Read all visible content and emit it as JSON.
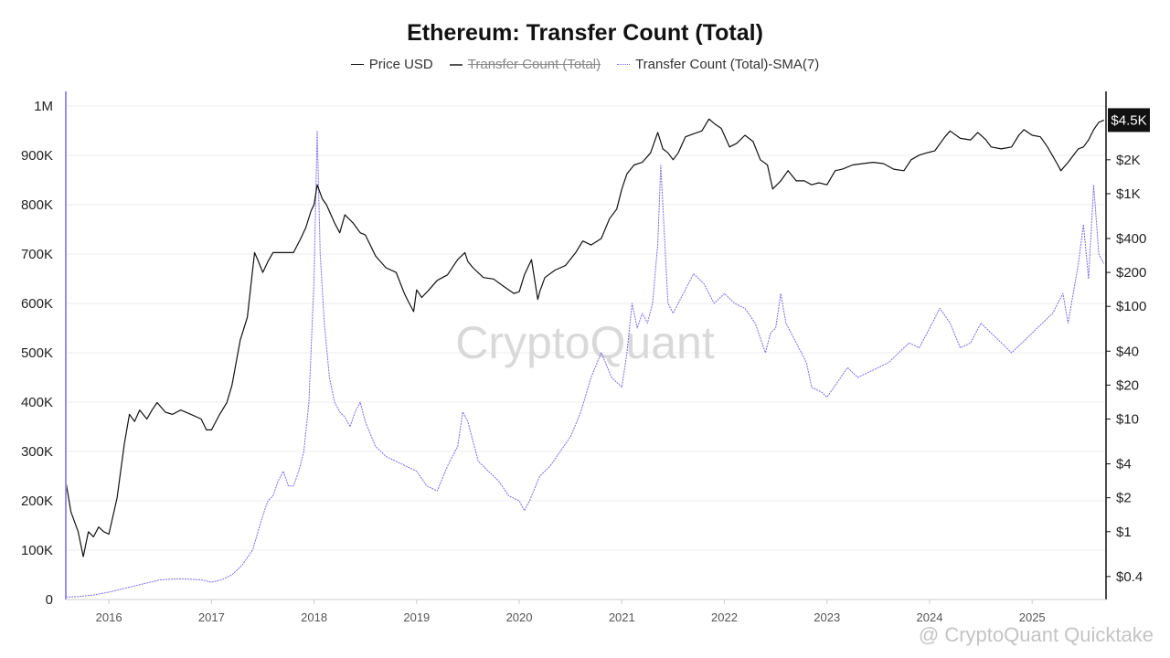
{
  "colors": {
    "price": "#111111",
    "transfer_count": "#555555",
    "sma": "#7b6ce8",
    "left_axis": "#9a8cf0",
    "grid": "#eeeeee",
    "price_badge": "#111111"
  },
  "watermark": {
    "center_text": "CryptoQuant",
    "corner_text": "@ CryptoQuant Quicktake"
  },
  "chart_data": {
    "type": "line",
    "title": "Ethereum: Transfer Count (Total)",
    "legend": [
      {
        "name": "Price USD",
        "style": "solid",
        "hidden": false
      },
      {
        "name": "Transfer Count (Total)",
        "style": "solid",
        "hidden": true
      },
      {
        "name": "Transfer Count (Total)-SMA(7)",
        "style": "dotted",
        "hidden": false
      }
    ],
    "x_ticks": [
      "2016",
      "2017",
      "2018",
      "2019",
      "2020",
      "2021",
      "2022",
      "2023",
      "2024",
      "2025"
    ],
    "xlim": [
      2015.58,
      2025.72
    ],
    "y_left": {
      "ticks": [
        0,
        100000,
        200000,
        300000,
        400000,
        500000,
        600000,
        700000,
        800000,
        900000,
        1000000
      ],
      "tick_labels": [
        "0",
        "100K",
        "200K",
        "300K",
        "400K",
        "500K",
        "600K",
        "700K",
        "800K",
        "900K",
        "1M"
      ],
      "ylim": [
        0,
        1000000
      ]
    },
    "y_right": {
      "scale": "log",
      "ticks": [
        0.4,
        1,
        2,
        4,
        10,
        20,
        40,
        100,
        200,
        400,
        1000,
        2000
      ],
      "tick_labels": [
        "$0.4",
        "$1",
        "$2",
        "$4",
        "$10",
        "$20",
        "$40",
        "$100",
        "$200",
        "$400",
        "$1K",
        "$2K"
      ],
      "current_label": "$4.5K",
      "current_value": 4500
    },
    "series": [
      {
        "name": "Price USD",
        "axis": "right",
        "x": [
          2015.58,
          2015.63,
          2015.7,
          2015.75,
          2015.8,
          2015.85,
          2015.9,
          2015.95,
          2016.0,
          2016.08,
          2016.15,
          2016.2,
          2016.25,
          2016.3,
          2016.37,
          2016.42,
          2016.47,
          2016.55,
          2016.62,
          2016.7,
          2016.8,
          2016.9,
          2016.95,
          2017.0,
          2017.08,
          2017.15,
          2017.2,
          2017.28,
          2017.35,
          2017.42,
          2017.45,
          2017.5,
          2017.55,
          2017.6,
          2017.7,
          2017.8,
          2017.87,
          2017.92,
          2017.97,
          2018.0,
          2018.03,
          2018.08,
          2018.12,
          2018.2,
          2018.25,
          2018.3,
          2018.38,
          2018.45,
          2018.5,
          2018.6,
          2018.7,
          2018.8,
          2018.88,
          2018.92,
          2018.97,
          2019.0,
          2019.05,
          2019.12,
          2019.2,
          2019.3,
          2019.4,
          2019.47,
          2019.5,
          2019.55,
          2019.65,
          2019.75,
          2019.85,
          2019.95,
          2020.0,
          2020.05,
          2020.12,
          2020.18,
          2020.2,
          2020.25,
          2020.35,
          2020.45,
          2020.55,
          2020.62,
          2020.7,
          2020.8,
          2020.88,
          2020.95,
          2021.0,
          2021.05,
          2021.12,
          2021.2,
          2021.28,
          2021.35,
          2021.4,
          2021.45,
          2021.5,
          2021.55,
          2021.62,
          2021.7,
          2021.78,
          2021.85,
          2021.9,
          2021.97,
          2022.05,
          2022.12,
          2022.2,
          2022.28,
          2022.35,
          2022.42,
          2022.47,
          2022.55,
          2022.62,
          2022.7,
          2022.78,
          2022.85,
          2022.92,
          2023.0,
          2023.08,
          2023.15,
          2023.25,
          2023.35,
          2023.45,
          2023.55,
          2023.65,
          2023.75,
          2023.82,
          2023.9,
          2023.97,
          2024.05,
          2024.15,
          2024.2,
          2024.3,
          2024.4,
          2024.47,
          2024.55,
          2024.6,
          2024.7,
          2024.8,
          2024.87,
          2024.92,
          2025.0,
          2025.08,
          2025.15,
          2025.25,
          2025.28,
          2025.35,
          2025.45,
          2025.5,
          2025.55,
          2025.6,
          2025.65,
          2025.7
        ],
        "values": [
          2.8,
          1.5,
          1.0,
          0.6,
          1.0,
          0.9,
          1.1,
          1.0,
          0.95,
          2.0,
          6.0,
          11.0,
          9.5,
          12.0,
          10.0,
          12.0,
          14.0,
          11.5,
          11.0,
          12.0,
          11.0,
          10.0,
          8.0,
          8.0,
          11.0,
          14.0,
          20.0,
          50.0,
          80.0,
          300.0,
          260.0,
          200.0,
          250.0,
          300.0,
          300.0,
          300.0,
          400.0,
          500.0,
          700.0,
          800.0,
          1200.0,
          900.0,
          800.0,
          550.0,
          450.0,
          650.0,
          550.0,
          450.0,
          430.0,
          280.0,
          220.0,
          200.0,
          130.0,
          110.0,
          90.0,
          140.0,
          120.0,
          140.0,
          170.0,
          190.0,
          260.0,
          300.0,
          250.0,
          220.0,
          180.0,
          175.0,
          150.0,
          130.0,
          135.0,
          190.0,
          260.0,
          115.0,
          135.0,
          180.0,
          210.0,
          230.0,
          300.0,
          380.0,
          350.0,
          400.0,
          600.0,
          730.0,
          1100.0,
          1500.0,
          1800.0,
          1900.0,
          2300.0,
          3500.0,
          2500.0,
          2300.0,
          2000.0,
          2300.0,
          3200.0,
          3400.0,
          3600.0,
          4600.0,
          4200.0,
          3800.0,
          2600.0,
          2800.0,
          3300.0,
          2900.0,
          2000.0,
          1800.0,
          1100.0,
          1300.0,
          1600.0,
          1300.0,
          1300.0,
          1200.0,
          1250.0,
          1200.0,
          1600.0,
          1650.0,
          1800.0,
          1850.0,
          1900.0,
          1850.0,
          1650.0,
          1600.0,
          2000.0,
          2200.0,
          2300.0,
          2400.0,
          3200.0,
          3600.0,
          3100.0,
          3000.0,
          3500.0,
          3000.0,
          2600.0,
          2500.0,
          2600.0,
          3300.0,
          3700.0,
          3300.0,
          3200.0,
          2600.0,
          1800.0,
          1600.0,
          1900.0,
          2500.0,
          2600.0,
          3000.0,
          3700.0,
          4300.0,
          4500.0
        ]
      },
      {
        "name": "Transfer Count (Total)-SMA(7)",
        "axis": "left",
        "x": [
          2015.58,
          2015.7,
          2015.85,
          2016.0,
          2016.2,
          2016.4,
          2016.5,
          2016.7,
          2016.9,
          2017.0,
          2017.1,
          2017.2,
          2017.3,
          2017.4,
          2017.5,
          2017.55,
          2017.6,
          2017.65,
          2017.7,
          2017.75,
          2017.8,
          2017.85,
          2017.9,
          2017.95,
          2018.0,
          2018.03,
          2018.06,
          2018.1,
          2018.15,
          2018.2,
          2018.25,
          2018.3,
          2018.35,
          2018.4,
          2018.45,
          2018.5,
          2018.6,
          2018.7,
          2018.8,
          2018.9,
          2019.0,
          2019.1,
          2019.2,
          2019.3,
          2019.4,
          2019.45,
          2019.5,
          2019.6,
          2019.7,
          2019.8,
          2019.9,
          2020.0,
          2020.05,
          2020.1,
          2020.2,
          2020.3,
          2020.4,
          2020.5,
          2020.6,
          2020.7,
          2020.8,
          2020.9,
          2021.0,
          2021.05,
          2021.1,
          2021.15,
          2021.2,
          2021.25,
          2021.3,
          2021.35,
          2021.38,
          2021.45,
          2021.5,
          2021.6,
          2021.7,
          2021.8,
          2021.9,
          2022.0,
          2022.1,
          2022.2,
          2022.3,
          2022.4,
          2022.45,
          2022.5,
          2022.55,
          2022.6,
          2022.7,
          2022.8,
          2022.85,
          2022.95,
          2023.0,
          2023.1,
          2023.2,
          2023.3,
          2023.4,
          2023.5,
          2023.6,
          2023.7,
          2023.8,
          2023.9,
          2024.0,
          2024.1,
          2024.2,
          2024.3,
          2024.4,
          2024.5,
          2024.6,
          2024.7,
          2024.8,
          2024.9,
          2025.0,
          2025.1,
          2025.2,
          2025.3,
          2025.35,
          2025.4,
          2025.45,
          2025.5,
          2025.55,
          2025.6,
          2025.65,
          2025.7
        ],
        "values": [
          5000,
          6000,
          9000,
          15000,
          25000,
          35000,
          40000,
          42000,
          40000,
          35000,
          40000,
          50000,
          70000,
          100000,
          170000,
          200000,
          210000,
          240000,
          260000,
          230000,
          230000,
          260000,
          300000,
          400000,
          650000,
          950000,
          700000,
          560000,
          450000,
          400000,
          380000,
          370000,
          350000,
          380000,
          400000,
          360000,
          310000,
          290000,
          280000,
          270000,
          260000,
          230000,
          220000,
          270000,
          310000,
          380000,
          360000,
          280000,
          260000,
          240000,
          210000,
          200000,
          180000,
          200000,
          250000,
          270000,
          300000,
          330000,
          380000,
          450000,
          500000,
          450000,
          430000,
          500000,
          600000,
          550000,
          580000,
          560000,
          600000,
          720000,
          880000,
          600000,
          580000,
          620000,
          660000,
          640000,
          600000,
          620000,
          600000,
          590000,
          560000,
          500000,
          540000,
          550000,
          620000,
          560000,
          520000,
          480000,
          430000,
          420000,
          410000,
          440000,
          470000,
          450000,
          460000,
          470000,
          480000,
          500000,
          520000,
          510000,
          550000,
          590000,
          560000,
          510000,
          520000,
          560000,
          540000,
          520000,
          500000,
          520000,
          540000,
          560000,
          580000,
          620000,
          560000,
          620000,
          680000,
          760000,
          650000,
          840000,
          700000,
          680000
        ]
      }
    ]
  }
}
